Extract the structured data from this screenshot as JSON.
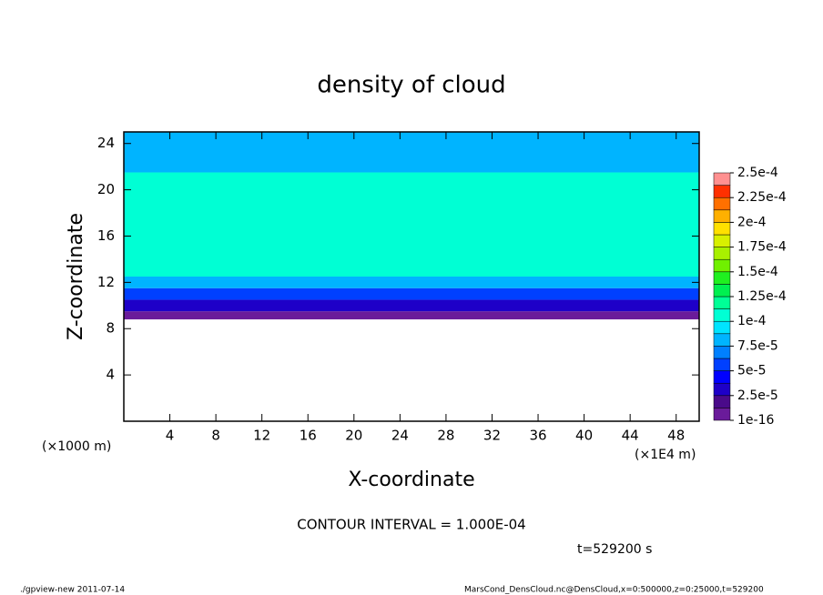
{
  "chart_data": {
    "type": "heatmap",
    "title": "density of cloud",
    "x_label": "X-coordinate",
    "y_label": "Z-coordinate",
    "x_unit": "(×1000 m)",
    "x_unit_right": "(×1E4 m)",
    "xlim": [
      0,
      50
    ],
    "xticks": [
      4,
      8,
      12,
      16,
      20,
      24,
      28,
      32,
      36,
      40,
      44,
      48
    ],
    "ylim": [
      0,
      25
    ],
    "yticks": [
      4,
      8,
      12,
      16,
      20,
      24
    ],
    "z_edges": [
      8.8,
      9.5,
      10.5,
      11.5,
      12.5,
      21.5,
      25
    ],
    "values": [
      1e-05,
      3e-05,
      5.5e-05,
      8e-05,
      0.00011,
      8e-05
    ],
    "colorbar_levels": [
      {
        "value": 1e-16,
        "label": "1e-16"
      },
      {
        "value": 2.5e-05,
        "label": "2.5e-5"
      },
      {
        "value": 5e-05,
        "label": "5e-5"
      },
      {
        "value": 7.5e-05,
        "label": "7.5e-5"
      },
      {
        "value": 0.0001,
        "label": "1e-4"
      },
      {
        "value": 0.000125,
        "label": "1.25e-4"
      },
      {
        "value": 0.00015,
        "label": "1.5e-4"
      },
      {
        "value": 0.000175,
        "label": "1.75e-4"
      },
      {
        "value": 0.0002,
        "label": "2e-4"
      },
      {
        "value": 0.000225,
        "label": "2.25e-4"
      },
      {
        "value": 0.00025,
        "label": "2.5e-4"
      }
    ],
    "colors": [
      "#6a1b9a",
      "#4a0a8a",
      "#1e00c8",
      "#0000ff",
      "#0040ff",
      "#0080ff",
      "#00b4ff",
      "#00e4ff",
      "#00ffd4",
      "#00ff96",
      "#00f050",
      "#20f020",
      "#70f000",
      "#a8f000",
      "#d8f000",
      "#ffe000",
      "#ffb000",
      "#ff7000",
      "#ff3000",
      "#ff9090"
    ],
    "contour_interval": "CONTOUR INTERVAL = 1.000E-04",
    "time_label": "t=529200 s",
    "footer_left": "./gpview-new  2011-07-14",
    "footer_right": "MarsCond_DensCloud.nc@DensCloud,x=0:500000,z=0:25000,t=529200"
  }
}
